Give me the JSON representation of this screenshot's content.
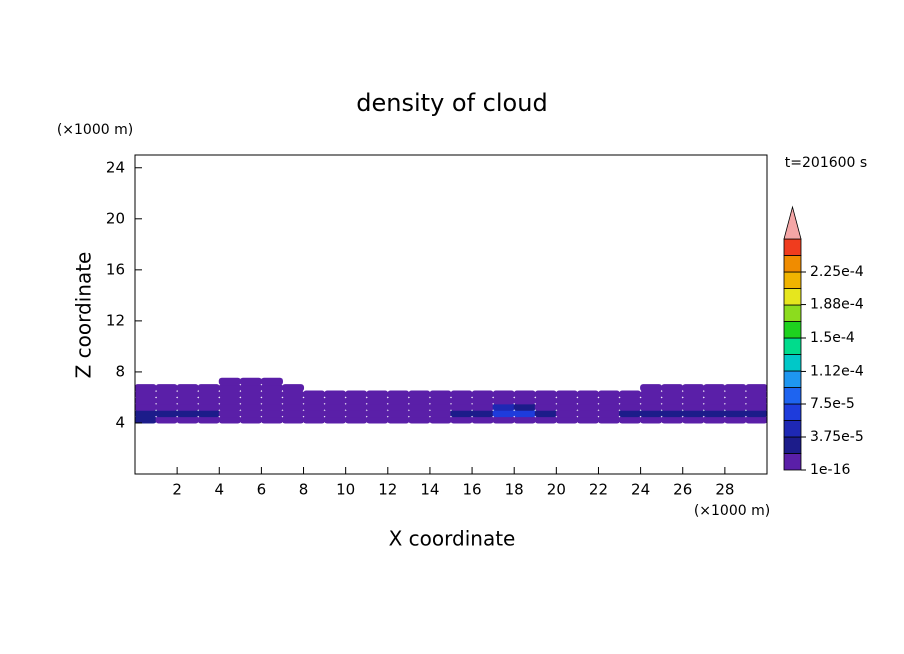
{
  "chart_data": {
    "type": "contour",
    "title": "density of cloud",
    "xlabel": "X coordinate",
    "ylabel": "Z coordinate",
    "xunit": "(×1000 m)",
    "yunit": "(×1000 m)",
    "time_label": "t=201600 s",
    "xlim": [
      0,
      30
    ],
    "ylim": [
      0,
      25
    ],
    "xticks": [
      2,
      4,
      6,
      8,
      10,
      12,
      14,
      16,
      18,
      20,
      22,
      24,
      26,
      28
    ],
    "yticks": [
      4,
      8,
      12,
      16,
      20,
      24
    ],
    "field": {
      "x": [
        0.5,
        1.5,
        2.5,
        3.5,
        4.5,
        5.5,
        6.5,
        7.5,
        8.5,
        9.5,
        10.5,
        11.5,
        12.5,
        13.5,
        14.5,
        15.5,
        16.5,
        17.5,
        18.5,
        19.5,
        20.5,
        21.5,
        22.5,
        23.5,
        24.5,
        25.5,
        26.5,
        27.5,
        28.5,
        29.5
      ],
      "z": [
        4.25,
        4.75,
        5.25,
        5.75,
        6.25,
        6.75,
        7.25
      ],
      "values": [
        [
          3e-05,
          1e-05,
          1e-05,
          1e-05,
          1e-05,
          1e-05,
          1e-05,
          1e-05,
          1e-05,
          1e-05,
          1e-05,
          1e-05,
          1e-05,
          1e-05,
          1e-05,
          1e-05,
          1e-05,
          1e-05,
          1e-05,
          1e-05,
          1e-05,
          1e-05,
          1e-05,
          1e-05,
          1e-05,
          1e-05,
          1e-05,
          1e-05,
          1e-05,
          1e-05
        ],
        [
          3e-05,
          3e-05,
          3e-05,
          3e-05,
          1e-05,
          1e-05,
          1e-05,
          1e-05,
          1e-05,
          1e-05,
          1e-05,
          1e-05,
          1e-05,
          1e-05,
          1e-05,
          2.5e-05,
          2.5e-05,
          6e-05,
          6e-05,
          3e-05,
          1e-05,
          1e-05,
          1e-05,
          3e-05,
          3e-05,
          3e-05,
          3e-05,
          3e-05,
          3e-05,
          3e-05
        ],
        [
          1e-05,
          1e-05,
          1e-05,
          1e-05,
          1e-05,
          1e-05,
          1e-05,
          1e-05,
          1e-05,
          1e-05,
          1e-05,
          1e-05,
          1e-05,
          1e-05,
          1e-05,
          1e-05,
          1e-05,
          4e-05,
          3e-05,
          1e-05,
          1e-05,
          1e-05,
          1e-05,
          1e-05,
          1e-05,
          1e-05,
          1e-05,
          1e-05,
          1e-05,
          1e-05
        ],
        [
          1e-05,
          1e-05,
          1e-05,
          1e-05,
          1e-05,
          1e-05,
          1e-05,
          1e-05,
          1e-05,
          1e-05,
          1e-05,
          1e-05,
          1e-05,
          1e-05,
          1e-05,
          1e-05,
          1e-05,
          1e-05,
          1e-05,
          1e-05,
          1e-05,
          1e-05,
          1e-05,
          1e-05,
          1e-05,
          1e-05,
          1e-05,
          1e-05,
          1e-05,
          1e-05
        ],
        [
          1e-05,
          1e-05,
          1e-05,
          1e-05,
          1e-05,
          1e-05,
          1e-05,
          1e-05,
          1e-05,
          1e-05,
          1e-05,
          1e-05,
          1e-05,
          1e-05,
          1e-05,
          1e-05,
          1e-05,
          1e-05,
          1e-05,
          1e-05,
          1e-05,
          1e-05,
          1e-05,
          1e-05,
          1e-05,
          1e-05,
          1e-05,
          1e-05,
          1e-05,
          1e-05
        ],
        [
          1e-05,
          1e-05,
          1e-05,
          1e-05,
          1e-05,
          1e-05,
          1e-05,
          1e-05,
          null,
          null,
          null,
          null,
          null,
          null,
          null,
          null,
          null,
          null,
          null,
          null,
          null,
          null,
          null,
          null,
          1e-05,
          1e-05,
          1e-05,
          1e-05,
          1e-05,
          1e-05
        ],
        [
          null,
          null,
          null,
          null,
          1e-05,
          1e-05,
          1e-05,
          null,
          null,
          null,
          null,
          null,
          null,
          null,
          null,
          null,
          null,
          null,
          null,
          null,
          null,
          null,
          null,
          null,
          null,
          null,
          null,
          null,
          null,
          null
        ]
      ]
    },
    "colorbar": {
      "levels": [
        1e-16,
        1.875e-05,
        3.75e-05,
        5.625e-05,
        7.5e-05,
        9.375e-05,
        0.0001125,
        0.00013125,
        0.00015,
        0.00016875,
        0.0001875,
        0.00020625,
        0.000225,
        0.00024375,
        0.0002625
      ],
      "colors": [
        "#5a1fa8",
        "#1c1c8a",
        "#1e28b4",
        "#1e3cdc",
        "#1e64f0",
        "#1e96f0",
        "#00c8c8",
        "#00dc8c",
        "#1ed21e",
        "#8cdc1e",
        "#e6e61e",
        "#f0b400",
        "#f08c00",
        "#f03c1e"
      ],
      "extend_color": "#f4a6a6",
      "ticks": [
        {
          "value": 1e-16,
          "label": "1e-16"
        },
        {
          "value": 3.75e-05,
          "label": "3.75e-5"
        },
        {
          "value": 7.5e-05,
          "label": "7.5e-5"
        },
        {
          "value": 0.000112,
          "label": "1.12e-4"
        },
        {
          "value": 0.00015,
          "label": "1.5e-4"
        },
        {
          "value": 0.000188,
          "label": "1.88e-4"
        },
        {
          "value": 0.000225,
          "label": "2.25e-4"
        }
      ]
    }
  }
}
